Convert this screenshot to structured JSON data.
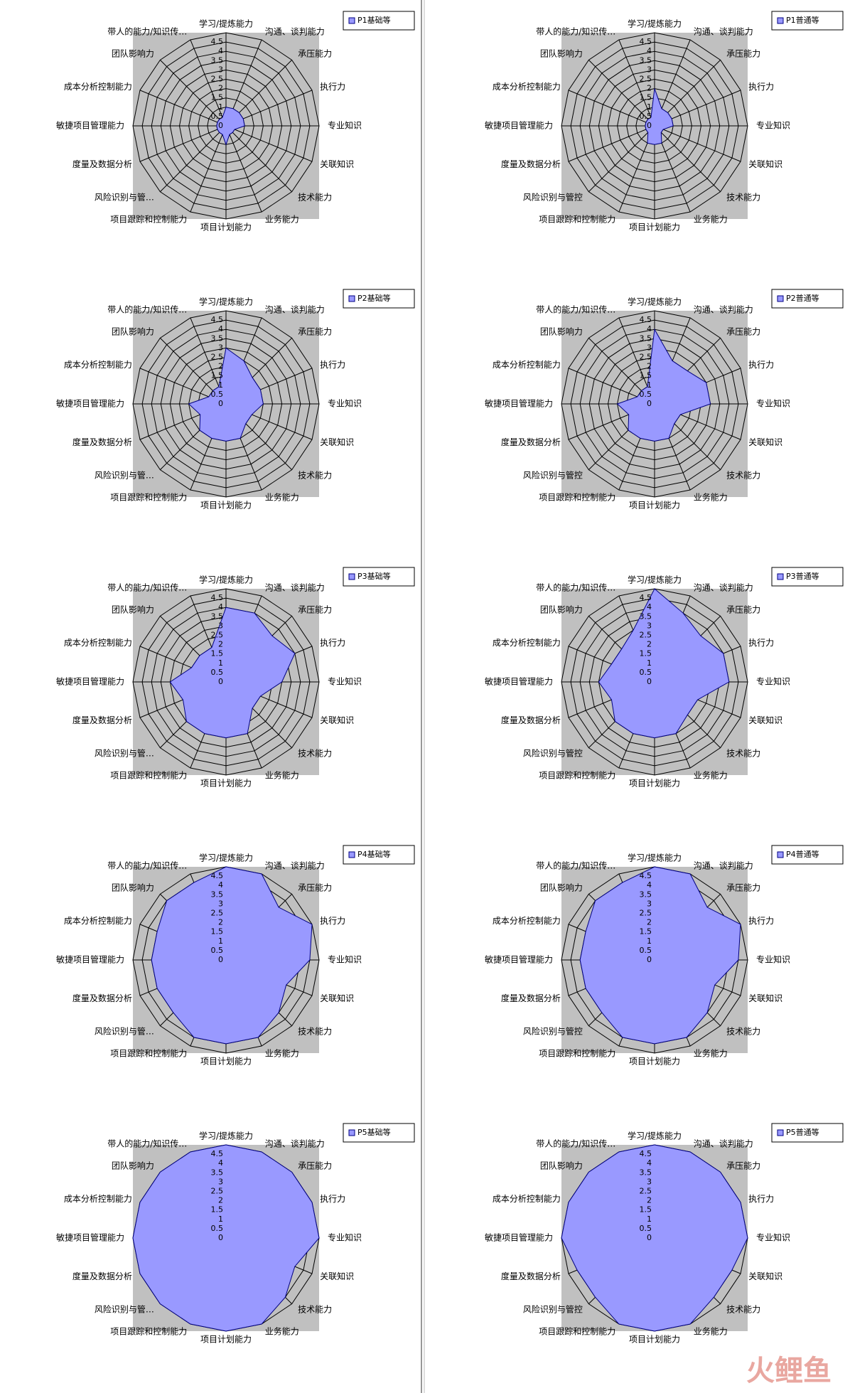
{
  "chart_data": [
    {
      "type": "radar",
      "categories": [
        "学习/提炼能力",
        "沟通、谈判能力",
        "承压能力",
        "执行力",
        "专业知识",
        "关联知识",
        "技术能力",
        "业务能力",
        "项目计划能力",
        "项目跟踪和控制能力",
        "风险识别与管…",
        "度量及数据分析",
        "敏捷项目管理能力",
        "成本分析控制能力",
        "团队影响力",
        "带人的能力/知识传…"
      ],
      "series": [
        {
          "name": "P1基础等",
          "color": "#9999ff",
          "values": [
            1,
            1,
            1,
            1,
            1,
            0.5,
            0.5,
            0.5,
            1,
            0.5,
            0.5,
            0.5,
            0.5,
            0.5,
            0.5,
            0.5
          ]
        }
      ],
      "ylim": [
        0,
        5
      ],
      "yticks": [
        0,
        0.5,
        1,
        1.5,
        2,
        2.5,
        3,
        3.5,
        4,
        4.5
      ],
      "legend": "top-right"
    },
    {
      "type": "radar",
      "categories": [
        "学习/提炼能力",
        "沟通、谈判能力",
        "承压能力",
        "执行力",
        "专业知识",
        "关联知识",
        "技术能力",
        "业务能力",
        "项目计划能力",
        "项目跟踪和控制能力",
        "风险识别与管控",
        "度量及数据分析",
        "敏捷项目管理能力",
        "成本分析控制能力",
        "团队影响力",
        "带人的能力/知识传…"
      ],
      "series": [
        {
          "name": "P1普通等",
          "color": "#9999ff",
          "values": [
            2,
            1,
            1,
            1,
            1,
            0.5,
            0.5,
            1,
            1,
            1,
            0.5,
            0.5,
            0.5,
            0.5,
            0.5,
            0.5
          ]
        }
      ],
      "ylim": [
        0,
        5
      ],
      "yticks": [
        0,
        0.5,
        1,
        1.5,
        2,
        2.5,
        3,
        3.5,
        4,
        4.5
      ],
      "legend": "top-right"
    },
    {
      "type": "radar",
      "categories": [
        "学习/提炼能力",
        "沟通、谈判能力",
        "承压能力",
        "执行力",
        "专业知识",
        "关联知识",
        "技术能力",
        "业务能力",
        "项目计划能力",
        "项目跟踪和控制能力",
        "风险识别与管…",
        "度量及数据分析",
        "敏捷项目管理能力",
        "成本分析控制能力",
        "团队影响力",
        "带人的能力/知识传…"
      ],
      "series": [
        {
          "name": "P2基础等",
          "color": "#9999ff",
          "values": [
            3,
            2.5,
            2,
            2,
            2,
            1.5,
            1.5,
            2,
            2,
            2,
            2,
            1.5,
            2,
            1,
            1,
            1
          ]
        }
      ],
      "ylim": [
        0,
        5
      ],
      "yticks": [
        0,
        0.5,
        1,
        1.5,
        2,
        2.5,
        3,
        3.5,
        4,
        4.5
      ],
      "legend": "top-right"
    },
    {
      "type": "radar",
      "categories": [
        "学习/提炼能力",
        "沟通、谈判能力",
        "承压能力",
        "执行力",
        "专业知识",
        "关联知识",
        "技术能力",
        "业务能力",
        "项目计划能力",
        "项目跟踪和控制能力",
        "风险识别与管控",
        "度量及数据分析",
        "敏捷项目管理能力",
        "成本分析控制能力",
        "团队影响力",
        "带人的能力/知识传…"
      ],
      "series": [
        {
          "name": "P2普通等",
          "color": "#9999ff",
          "values": [
            4,
            2.5,
            2.5,
            3,
            3,
            1.5,
            1.5,
            2,
            2,
            2,
            2,
            1.5,
            2,
            1,
            1,
            1
          ]
        }
      ],
      "ylim": [
        0,
        5
      ],
      "yticks": [
        0,
        0.5,
        1,
        1.5,
        2,
        2.5,
        3,
        3.5,
        4,
        4.5
      ],
      "legend": "top-right"
    },
    {
      "type": "radar",
      "categories": [
        "学习/提炼能力",
        "沟通、谈判能力",
        "承压能力",
        "执行力",
        "专业知识",
        "关联知识",
        "技术能力",
        "业务能力",
        "项目计划能力",
        "项目跟踪和控制能力",
        "风险识别与管…",
        "度量及数据分析",
        "敏捷项目管理能力",
        "成本分析控制能力",
        "团队影响力",
        "带人的能力/知识传…"
      ],
      "series": [
        {
          "name": "P3基础等",
          "color": "#9999ff",
          "values": [
            4,
            4,
            3.5,
            4,
            3,
            2,
            2,
            3,
            3,
            3,
            3,
            2.5,
            3,
            2,
            2,
            2
          ]
        }
      ],
      "ylim": [
        0,
        5
      ],
      "yticks": [
        0,
        0.5,
        1,
        1.5,
        2,
        2.5,
        3,
        3.5,
        4,
        4.5
      ],
      "legend": "top-right"
    },
    {
      "type": "radar",
      "categories": [
        "学习/提炼能力",
        "沟通、谈判能力",
        "承压能力",
        "执行力",
        "专业知识",
        "关联知识",
        "技术能力",
        "业务能力",
        "项目计划能力",
        "项目跟踪和控制能力",
        "风险识别与管控",
        "度量及数据分析",
        "敏捷项目管理能力",
        "成本分析控制能力",
        "团队影响力",
        "带人的能力/知识传…"
      ],
      "series": [
        {
          "name": "P3普通等",
          "color": "#9999ff",
          "values": [
            5,
            4,
            3.5,
            4,
            4,
            2.5,
            2.5,
            3,
            3,
            3,
            3,
            2.5,
            3,
            2.5,
            2.5,
            3
          ]
        }
      ],
      "ylim": [
        0,
        5
      ],
      "yticks": [
        0,
        0.5,
        1,
        1.5,
        2,
        2.5,
        3,
        3.5,
        4,
        4.5
      ],
      "legend": "top-right"
    },
    {
      "type": "radar",
      "categories": [
        "学习/提炼能力",
        "沟通、谈判能力",
        "承压能力",
        "执行力",
        "专业知识",
        "关联知识",
        "技术能力",
        "业务能力",
        "项目计划能力",
        "项目跟踪和控制能力",
        "风险识别与管…",
        "度量及数据分析",
        "敏捷项目管理能力",
        "成本分析控制能力",
        "团队影响力",
        "带人的能力/知识传…"
      ],
      "series": [
        {
          "name": "P4基础等",
          "color": "#9999ff",
          "values": [
            5,
            5,
            4,
            5,
            4.5,
            3.5,
            4,
            4.5,
            4.5,
            4.5,
            4,
            4,
            4,
            4,
            4.5,
            4.5
          ]
        }
      ],
      "ylim": [
        0,
        5
      ],
      "yticks": [
        0,
        0.5,
        1,
        1.5,
        2,
        2.5,
        3,
        3.5,
        4,
        4.5
      ],
      "legend": "top-right"
    },
    {
      "type": "radar",
      "categories": [
        "学习/提炼能力",
        "沟通、谈判能力",
        "承压能力",
        "执行力",
        "专业知识",
        "关联知识",
        "技术能力",
        "业务能力",
        "项目计划能力",
        "项目跟踪和控制能力",
        "风险识别与管控",
        "度量及数据分析",
        "敏捷项目管理能力",
        "成本分析控制能力",
        "团队影响力",
        "带人的能力/知识传…"
      ],
      "series": [
        {
          "name": "P4普通等",
          "color": "#9999ff",
          "values": [
            5,
            5,
            4,
            5,
            4.5,
            3.5,
            4,
            4.5,
            4.5,
            4.5,
            4,
            4,
            4,
            4,
            4.5,
            4.5
          ]
        }
      ],
      "ylim": [
        0,
        5
      ],
      "yticks": [
        0,
        0.5,
        1,
        1.5,
        2,
        2.5,
        3,
        3.5,
        4,
        4.5
      ],
      "legend": "top-right"
    },
    {
      "type": "radar",
      "categories": [
        "学习/提炼能力",
        "沟通、谈判能力",
        "承压能力",
        "执行力",
        "专业知识",
        "关联知识",
        "技术能力",
        "业务能力",
        "项目计划能力",
        "项目跟踪和控制能力",
        "风险识别与管…",
        "度量及数据分析",
        "敏捷项目管理能力",
        "成本分析控制能力",
        "团队影响力",
        "带人的能力/知识传…"
      ],
      "series": [
        {
          "name": "P5基础等",
          "color": "#9999ff",
          "values": [
            5,
            5,
            5,
            5,
            5,
            4,
            4.5,
            5,
            5,
            5,
            5,
            5,
            5,
            5,
            5,
            5
          ]
        }
      ],
      "ylim": [
        0,
        5
      ],
      "yticks": [
        0,
        0.5,
        1,
        1.5,
        2,
        2.5,
        3,
        3.5,
        4,
        4.5
      ],
      "legend": "top-right"
    },
    {
      "type": "radar",
      "categories": [
        "学习/提炼能力",
        "沟通、谈判能力",
        "承压能力",
        "执行力",
        "专业知识",
        "关联知识",
        "技术能力",
        "业务能力",
        "项目计划能力",
        "项目跟踪和控制能力",
        "风险识别与管控",
        "度量及数据分析",
        "敏捷项目管理能力",
        "成本分析控制能力",
        "团队影响力",
        "带人的能力/知识传…"
      ],
      "series": [
        {
          "name": "P5普通等",
          "color": "#9999ff",
          "values": [
            5,
            5,
            5,
            5,
            5,
            4.5,
            4.5,
            5,
            5,
            5,
            4.5,
            4.5,
            5,
            5,
            5,
            5
          ]
        }
      ],
      "ylim": [
        0,
        5
      ],
      "yticks": [
        0,
        0.5,
        1,
        1.5,
        2,
        2.5,
        3,
        3.5,
        4,
        4.5
      ],
      "legend": "top-right"
    }
  ],
  "watermark": "火鲤鱼"
}
